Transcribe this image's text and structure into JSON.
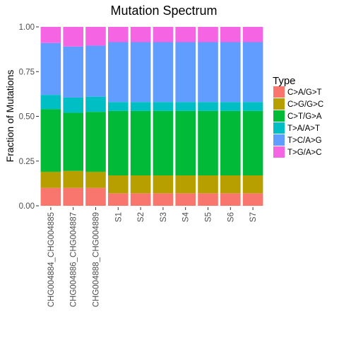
{
  "chart_data": {
    "type": "bar",
    "title": "Mutation Spectrum",
    "ylabel": "Fraction of Mutations",
    "xlabel": "",
    "ylim": [
      0,
      1
    ],
    "yticks": [
      "0.00",
      "0.25",
      "0.50",
      "0.75",
      "1.00"
    ],
    "categories": [
      "CHG004884_CHG004885",
      "CHG004886_CHG004887",
      "CHG004888_CHG004889",
      "S1",
      "S2",
      "S3",
      "S4",
      "S5",
      "S6",
      "S7"
    ],
    "legend_title": "Type",
    "legend_position": "right",
    "grid": false,
    "series": [
      {
        "name": "C>A/G>T",
        "color": "#F8766D",
        "values": [
          0.1,
          0.1,
          0.1,
          0.07,
          0.07,
          0.07,
          0.07,
          0.07,
          0.07,
          0.07
        ]
      },
      {
        "name": "C>G/G>C",
        "color": "#B79F00",
        "values": [
          0.09,
          0.095,
          0.09,
          0.1,
          0.1,
          0.1,
          0.1,
          0.1,
          0.1,
          0.1
        ]
      },
      {
        "name": "C>T/G>A",
        "color": "#00BA38",
        "values": [
          0.35,
          0.325,
          0.335,
          0.36,
          0.36,
          0.36,
          0.36,
          0.36,
          0.36,
          0.36
        ]
      },
      {
        "name": "T>A/A>T",
        "color": "#00BFC4",
        "values": [
          0.08,
          0.085,
          0.085,
          0.05,
          0.05,
          0.05,
          0.05,
          0.05,
          0.05,
          0.05
        ]
      },
      {
        "name": "T>C/A>G",
        "color": "#619CFF",
        "values": [
          0.29,
          0.285,
          0.285,
          0.335,
          0.335,
          0.335,
          0.335,
          0.335,
          0.335,
          0.335
        ]
      },
      {
        "name": "T>G/A>C",
        "color": "#F564E3",
        "values": [
          0.09,
          0.11,
          0.105,
          0.085,
          0.085,
          0.085,
          0.085,
          0.085,
          0.085,
          0.085
        ]
      }
    ]
  }
}
